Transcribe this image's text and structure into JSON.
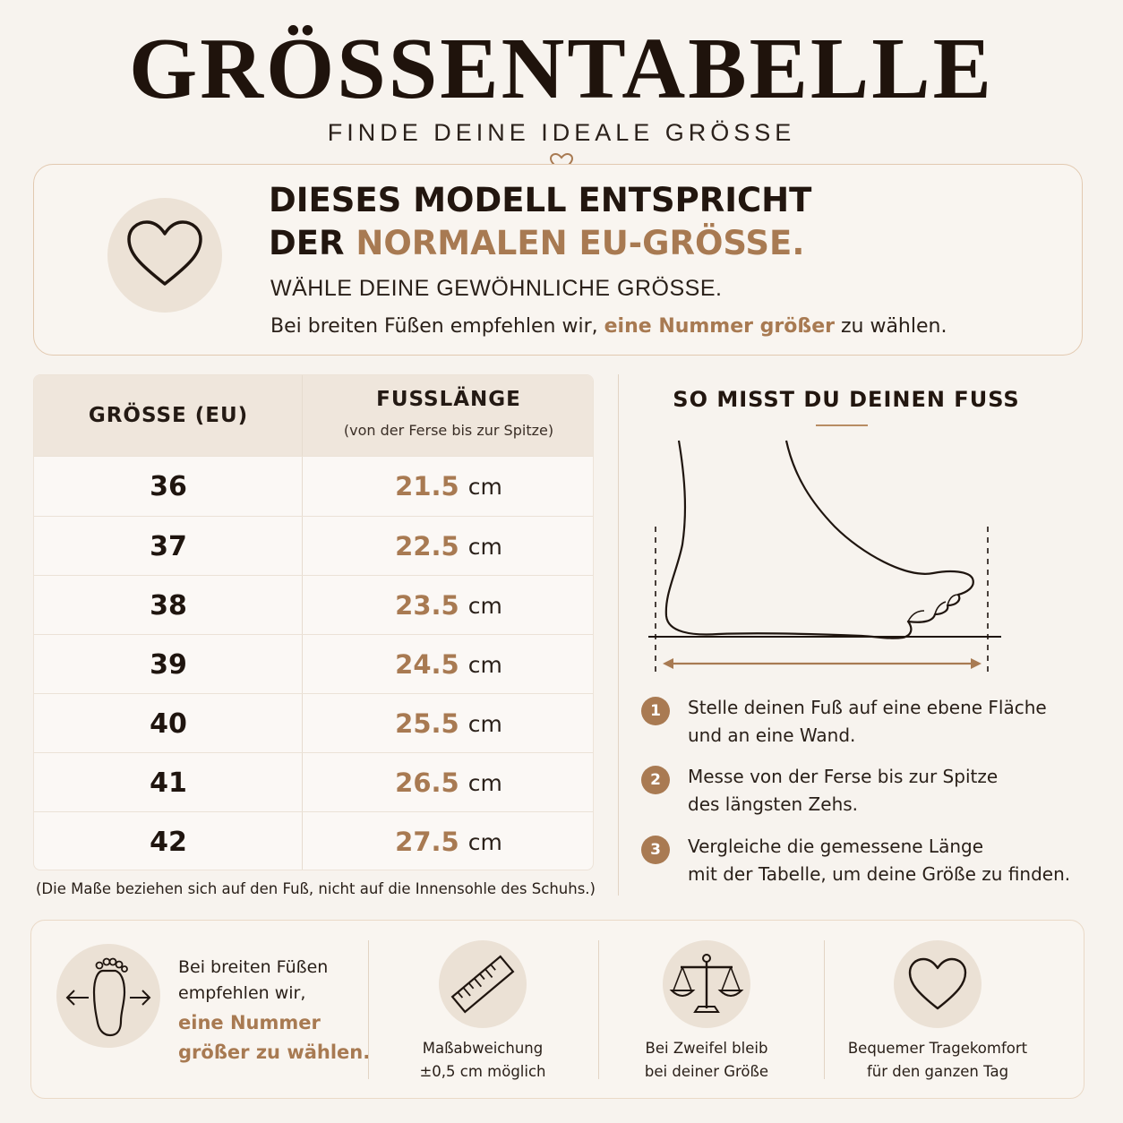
{
  "header": {
    "title": "GRÖSSENTABELLE",
    "subtitle": "FINDE DEINE IDEALE GRÖSSE"
  },
  "info": {
    "headline_line1": "DIESES MODELL ENTSPRICHT",
    "headline_line2_prefix": "DER ",
    "headline_line2_accent": "NORMALEN EU-GRÖSSE.",
    "line1": "WÄHLE DEINE GEWÖHNLICHE GRÖSSE.",
    "line2_prefix": "Bei breiten Füßen empfehlen wir, ",
    "line2_accent": "eine Nummer größer",
    "line2_suffix": " zu wählen."
  },
  "table": {
    "col_size": "GRÖSSE (EU)",
    "col_length": "FUSSLÄNGE",
    "col_length_sub": "(von der Ferse bis zur Spitze)",
    "rows": [
      {
        "size": "36",
        "length": "21.5",
        "unit": "cm"
      },
      {
        "size": "37",
        "length": "22.5",
        "unit": "cm"
      },
      {
        "size": "38",
        "length": "23.5",
        "unit": "cm"
      },
      {
        "size": "39",
        "length": "24.5",
        "unit": "cm"
      },
      {
        "size": "40",
        "length": "25.5",
        "unit": "cm"
      },
      {
        "size": "41",
        "length": "26.5",
        "unit": "cm"
      },
      {
        "size": "42",
        "length": "27.5",
        "unit": "cm"
      }
    ],
    "note": "(Die Maße beziehen sich auf den Fuß, nicht auf die Innensohle des Schuhs.)"
  },
  "measure": {
    "title": "SO MISST DU DEINEN FUSS",
    "steps": [
      {
        "num": "1",
        "text": "Stelle deinen Fuß auf eine ebene Fläche\nund an eine Wand."
      },
      {
        "num": "2",
        "text": "Messe von der Ferse bis zur Spitze\ndes längsten Zehs."
      },
      {
        "num": "3",
        "text": "Vergleiche die gemessene Länge\nmit der Tabelle, um deine Größe zu finden."
      }
    ]
  },
  "bottom": {
    "wide_text": "Bei breiten Füßen\nempfehlen wir,",
    "wide_accent": "eine Nummer\ngrößer zu wählen.",
    "tolerance": "Maßabweichung\n±0,5 cm möglich",
    "doubt": "Bei Zweifel bleib\nbei deiner Größe",
    "comfort": "Bequemer Tragekomfort\nfür den ganzen Tag"
  },
  "colors": {
    "accent": "#a87a52",
    "background": "#f7f3ee",
    "text": "#241a14"
  },
  "icons": [
    "heart-icon",
    "foot-width-icon",
    "ruler-icon",
    "scale-icon",
    "heart-icon"
  ]
}
